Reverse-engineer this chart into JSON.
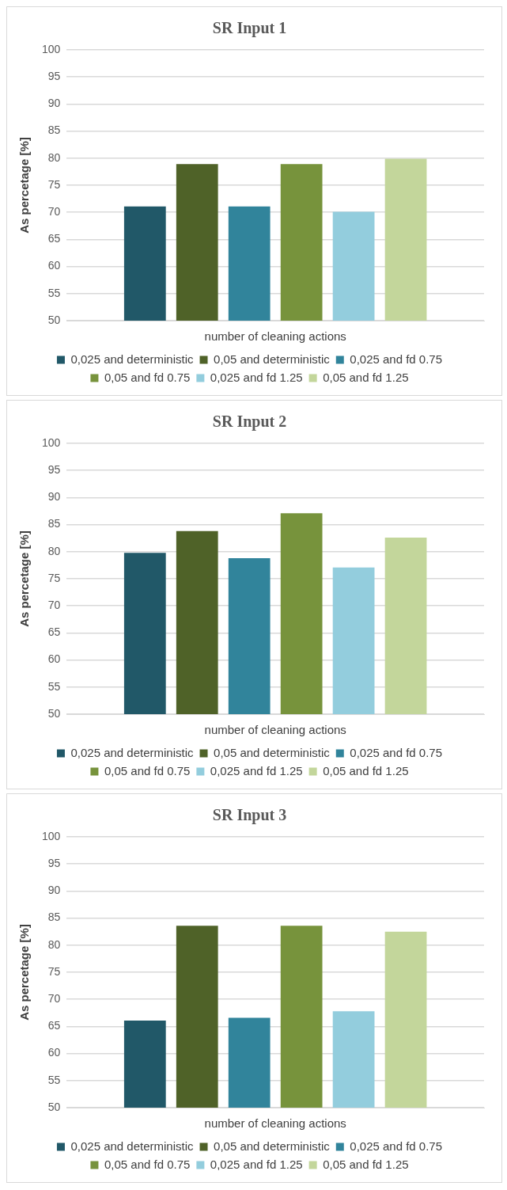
{
  "chart_data": [
    {
      "type": "bar",
      "title": "SR Input 1",
      "xlabel": "number of cleaning actions",
      "ylabel": "As percetage [%]",
      "categories": [
        null
      ],
      "ylim": [
        50,
        100
      ],
      "yticks": [
        50,
        55,
        60,
        65,
        70,
        75,
        80,
        85,
        90,
        95,
        100
      ],
      "grid": "y",
      "legend": "bottom",
      "series": [
        {
          "name": "0,025 and deterministic",
          "color": "#215868",
          "values": [
            71.1
          ]
        },
        {
          "name": "0,05 and deterministic",
          "color": "#4f6228",
          "values": [
            78.9
          ]
        },
        {
          "name": "0,025 and fd 0.75",
          "color": "#31849b",
          "values": [
            71.1
          ]
        },
        {
          "name": "0,05 and fd 0.75",
          "color": "#77933c",
          "values": [
            78.9
          ]
        },
        {
          "name": "0,025 and fd 1.25",
          "color": "#93cddd",
          "values": [
            70.1
          ]
        },
        {
          "name": "0,05 and fd 1.25",
          "color": "#c3d69b",
          "values": [
            79.9
          ]
        }
      ]
    },
    {
      "type": "bar",
      "title": "SR Input 2",
      "xlabel": "number of cleaning actions",
      "ylabel": "As percetage [%]",
      "categories": [
        null
      ],
      "ylim": [
        50,
        100
      ],
      "yticks": [
        50,
        55,
        60,
        65,
        70,
        75,
        80,
        85,
        90,
        95,
        100
      ],
      "grid": "y",
      "legend": "bottom",
      "series": [
        {
          "name": "0,025 and deterministic",
          "color": "#215868",
          "values": [
            79.8
          ]
        },
        {
          "name": "0,05 and deterministic",
          "color": "#4f6228",
          "values": [
            83.8
          ]
        },
        {
          "name": "0,025 and fd 0.75",
          "color": "#31849b",
          "values": [
            78.8
          ]
        },
        {
          "name": "0,05 and fd 0.75",
          "color": "#77933c",
          "values": [
            87.1
          ]
        },
        {
          "name": "0,025 and fd 1.25",
          "color": "#93cddd",
          "values": [
            77.1
          ]
        },
        {
          "name": "0,05 and fd 1.25",
          "color": "#c3d69b",
          "values": [
            82.6
          ]
        }
      ]
    },
    {
      "type": "bar",
      "title": "SR Input 3",
      "xlabel": "number of cleaning actions",
      "ylabel": "As percetage [%]",
      "categories": [
        null
      ],
      "ylim": [
        50,
        100
      ],
      "yticks": [
        50,
        55,
        60,
        65,
        70,
        75,
        80,
        85,
        90,
        95,
        100
      ],
      "grid": "y",
      "legend": "bottom",
      "series": [
        {
          "name": "0,025 and deterministic",
          "color": "#215868",
          "values": [
            66.1
          ]
        },
        {
          "name": "0,05 and deterministic",
          "color": "#4f6228",
          "values": [
            83.6
          ]
        },
        {
          "name": "0,025 and fd 0.75",
          "color": "#31849b",
          "values": [
            66.6
          ]
        },
        {
          "name": "0,05 and fd 0.75",
          "color": "#77933c",
          "values": [
            83.6
          ]
        },
        {
          "name": "0,025 and fd 1.25",
          "color": "#93cddd",
          "values": [
            67.8
          ]
        },
        {
          "name": "0,05 and fd 1.25",
          "color": "#c3d69b",
          "values": [
            82.5
          ]
        }
      ]
    }
  ]
}
